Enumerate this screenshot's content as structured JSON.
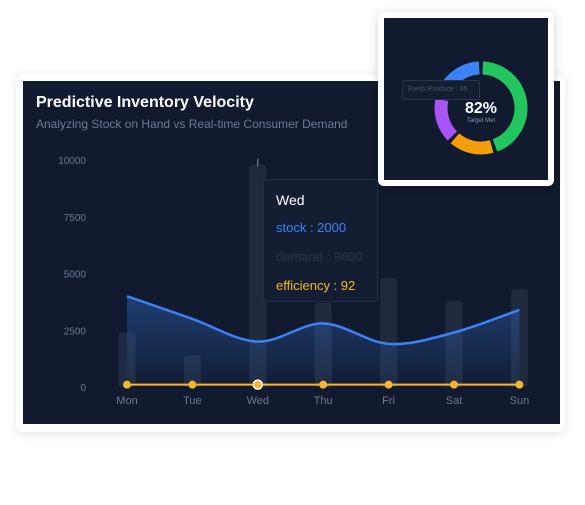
{
  "header": {
    "title": "Predictive Inventory Velocity",
    "subtitle": "Analyzing Stock on Hand vs Real-time Consumer Demand"
  },
  "tooltip": {
    "day": "Wed",
    "stock_text": "stock : 2000",
    "demand_text": "demand : 9800",
    "efficiency_text": "efficiency : 92"
  },
  "donut": {
    "percent": "82%",
    "sublabel": "Target Met",
    "tooltip_text": "Fresh Produce : 45",
    "segments": [
      {
        "name": "green",
        "value": 45,
        "color": "#22c55e"
      },
      {
        "name": "orange",
        "value": 17,
        "color": "#f59e0b"
      },
      {
        "name": "purple",
        "value": 17,
        "color": "#a855f7"
      },
      {
        "name": "blue",
        "value": 21,
        "color": "#3b82f6"
      }
    ]
  },
  "colors": {
    "background": "#111a2e",
    "stock": "#3b82f6",
    "demand": "#1f2a40",
    "efficiency": "#f5b731",
    "axis_text": "#6b7a96"
  },
  "chart_data": {
    "type": "bar",
    "categories": [
      "Mon",
      "Tue",
      "Wed",
      "Thu",
      "Fri",
      "Sat",
      "Sun"
    ],
    "ylim": [
      0,
      10000
    ],
    "yticks": [
      "10000",
      "7500",
      "5000",
      "2500",
      "0"
    ],
    "ytick_values": [
      10000,
      7500,
      5000,
      2500,
      0
    ],
    "series": [
      {
        "name": "stock",
        "type": "area",
        "values": [
          4000,
          3000,
          2000,
          2800,
          1900,
          2400,
          3400
        ]
      },
      {
        "name": "demand",
        "type": "bar",
        "values": [
          2400,
          1400,
          9800,
          3700,
          4800,
          3800,
          4300
        ]
      },
      {
        "name": "efficiency",
        "type": "line",
        "values": [
          92,
          92,
          92,
          92,
          92,
          92,
          92
        ]
      }
    ],
    "highlight_index": 2
  }
}
